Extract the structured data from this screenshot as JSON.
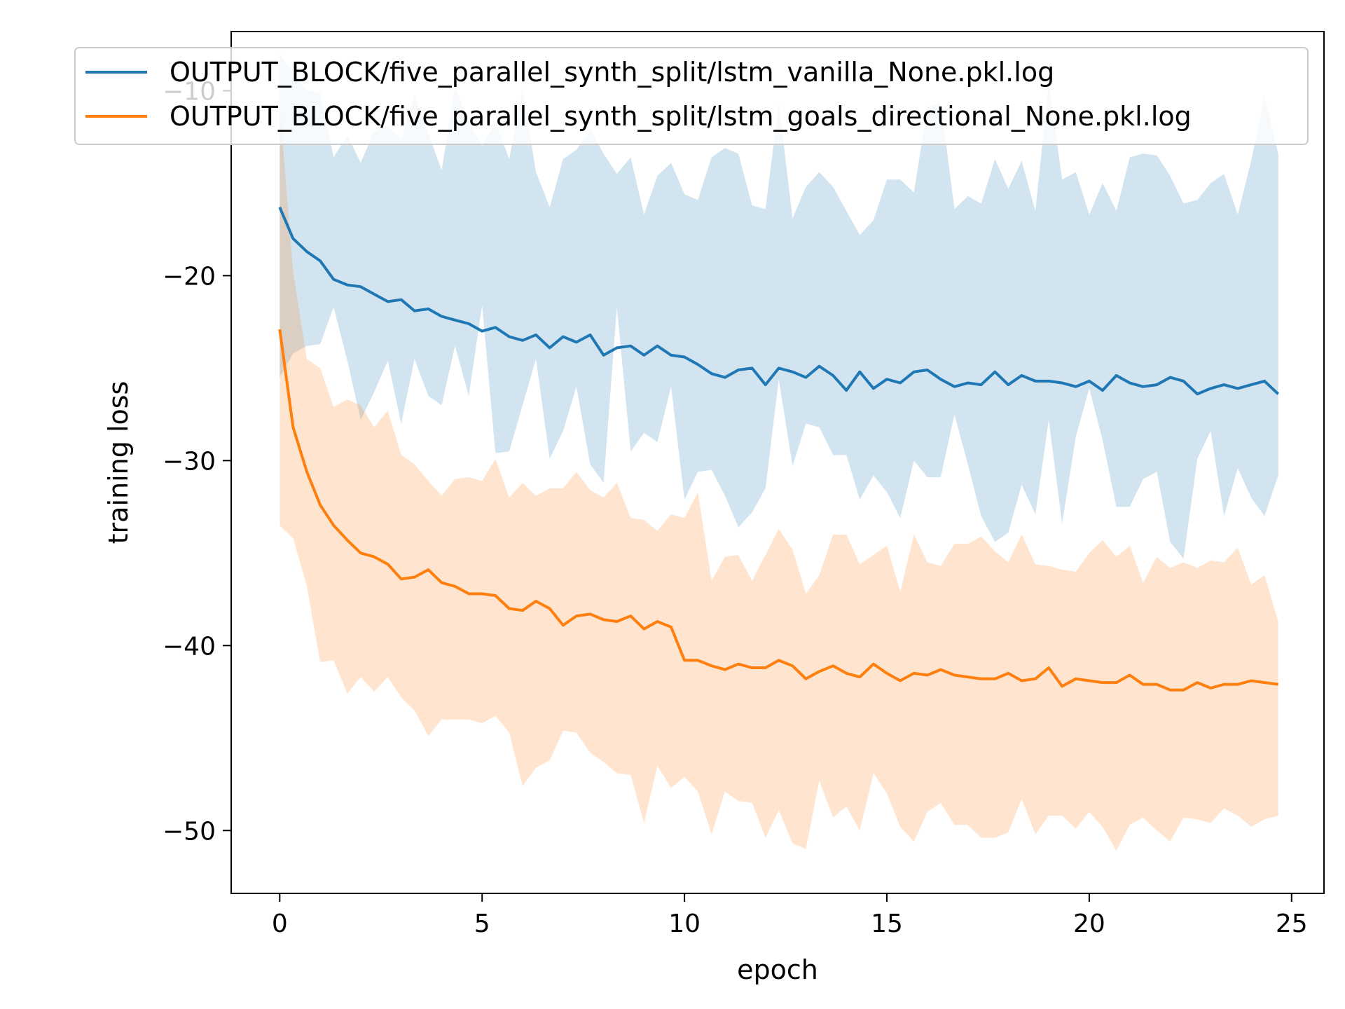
{
  "chart_data": {
    "type": "line",
    "xlabel": "epoch",
    "ylabel": "training loss",
    "xlim": [
      -1.2,
      25.8
    ],
    "ylim": [
      -53.4,
      -6.8
    ],
    "xticks": [
      0,
      5,
      10,
      15,
      20,
      25
    ],
    "yticks": [
      -50,
      -40,
      -30,
      -20,
      -10
    ],
    "legend_position": "top",
    "grid": false,
    "colors": {
      "series_1": "#1f77b4",
      "series_2": "#ff7f0e"
    },
    "series": [
      {
        "name": "OUTPUT_BLOCK/five_parallel_synth_split/lstm_vanilla_None.pkl.log",
        "x": [
          0,
          0.33,
          0.67,
          1,
          1.33,
          1.67,
          2,
          2.33,
          2.67,
          3,
          3.33,
          3.67,
          4,
          4.33,
          4.67,
          5,
          5.33,
          5.67,
          6,
          6.33,
          6.67,
          7,
          7.33,
          7.67,
          8,
          8.33,
          8.67,
          9,
          9.33,
          9.67,
          10,
          10.33,
          10.67,
          11,
          11.33,
          11.67,
          12,
          12.33,
          12.67,
          13,
          13.33,
          13.67,
          14,
          14.33,
          14.67,
          15,
          15.33,
          15.67,
          16,
          16.33,
          16.67,
          17,
          17.33,
          17.67,
          18,
          18.33,
          18.67,
          19,
          19.33,
          19.67,
          20,
          20.33,
          20.67,
          21,
          21.33,
          21.67,
          22,
          22.33,
          22.67,
          23,
          23.33,
          23.67,
          24,
          24.33,
          24.67
        ],
        "mean": [
          -16.3,
          -18.0,
          -18.7,
          -19.2,
          -20.2,
          -20.5,
          -20.6,
          -21.0,
          -21.4,
          -21.3,
          -21.9,
          -21.8,
          -22.2,
          -22.4,
          -22.6,
          -23.0,
          -22.8,
          -23.3,
          -23.5,
          -23.2,
          -23.9,
          -23.3,
          -23.6,
          -23.2,
          -24.3,
          -23.9,
          -23.8,
          -24.3,
          -23.8,
          -24.3,
          -24.4,
          -24.8,
          -25.3,
          -25.5,
          -25.1,
          -25.0,
          -25.9,
          -25.0,
          -25.2,
          -25.5,
          -24.9,
          -25.4,
          -26.2,
          -25.2,
          -26.1,
          -25.6,
          -25.8,
          -25.2,
          -25.1,
          -25.6,
          -26.0,
          -25.8,
          -25.9,
          -25.2,
          -25.9,
          -25.4,
          -25.7,
          -25.7,
          -25.8,
          -26.0,
          -25.7,
          -26.2,
          -25.4,
          -25.8,
          -26.0,
          -25.9,
          -25.5,
          -25.7,
          -26.4,
          -26.1,
          -25.9,
          -26.1,
          -25.9,
          -25.7,
          -26.4
        ],
        "upper": [
          -8.0,
          -9.0,
          -10.0,
          -10.1,
          -13.6,
          -12.4,
          -13.9,
          -12.2,
          -11.9,
          -12.6,
          -10.3,
          -12.3,
          -14.3,
          -9.8,
          -11.7,
          -13.0,
          -11.7,
          -13.7,
          -9.9,
          -14.4,
          -16.3,
          -13.7,
          -13.2,
          -12.1,
          -13.4,
          -14.5,
          -13.6,
          -16.7,
          -14.6,
          -13.9,
          -15.6,
          -15.9,
          -13.6,
          -13.1,
          -13.4,
          -16.2,
          -16.4,
          -10.7,
          -16.9,
          -15.2,
          -14.4,
          -15.2,
          -16.5,
          -17.8,
          -17.0,
          -14.8,
          -14.8,
          -15.5,
          -10.9,
          -10.6,
          -16.4,
          -15.7,
          -16.1,
          -13.7,
          -15.3,
          -13.8,
          -16.5,
          -9.6,
          -14.8,
          -14.4,
          -16.7,
          -15.0,
          -16.5,
          -13.6,
          -13.4,
          -13.5,
          -14.6,
          -16.1,
          -15.9,
          -15.0,
          -14.5,
          -16.7,
          -13.8,
          -10.3,
          -13.4
        ],
        "lower": [
          -25.5,
          -24.2,
          -23.8,
          -23.7,
          -21.7,
          -24.6,
          -27.8,
          -26.3,
          -24.6,
          -28.0,
          -24.5,
          -26.5,
          -27.0,
          -23.8,
          -26.5,
          -21.6,
          -29.6,
          -29.5,
          -27.0,
          -24.5,
          -29.9,
          -28.4,
          -26.0,
          -30.2,
          -31.2,
          -21.7,
          -29.5,
          -28.5,
          -29.0,
          -26.0,
          -32.1,
          -30.6,
          -30.5,
          -31.9,
          -33.6,
          -32.8,
          -31.5,
          -25.6,
          -30.3,
          -28.0,
          -28.2,
          -29.7,
          -29.7,
          -32.1,
          -30.8,
          -31.7,
          -33.1,
          -30.0,
          -30.9,
          -30.9,
          -27.5,
          -30.2,
          -33.0,
          -34.4,
          -33.9,
          -31.3,
          -32.9,
          -27.8,
          -33.4,
          -28.7,
          -26.1,
          -28.9,
          -32.5,
          -32.5,
          -31.0,
          -30.6,
          -34.4,
          -35.3,
          -29.9,
          -28.4,
          -33.0,
          -30.4,
          -32.0,
          -33.0,
          -30.8
        ]
      },
      {
        "name": "OUTPUT_BLOCK/five_parallel_synth_split/lstm_goals_directional_None.pkl.log",
        "x": [
          0,
          0.33,
          0.67,
          1,
          1.33,
          1.67,
          2,
          2.33,
          2.67,
          3,
          3.33,
          3.67,
          4,
          4.33,
          4.67,
          5,
          5.33,
          5.67,
          6,
          6.33,
          6.67,
          7,
          7.33,
          7.67,
          8,
          8.33,
          8.67,
          9,
          9.33,
          9.67,
          10,
          10.33,
          10.67,
          11,
          11.33,
          11.67,
          12,
          12.33,
          12.67,
          13,
          13.33,
          13.67,
          14,
          14.33,
          14.67,
          15,
          15.33,
          15.67,
          16,
          16.33,
          16.67,
          17,
          17.33,
          17.67,
          18,
          18.33,
          18.67,
          19,
          19.33,
          19.67,
          20,
          20.33,
          20.67,
          21,
          21.33,
          21.67,
          22,
          22.33,
          22.67,
          23,
          23.33,
          23.67,
          24,
          24.33,
          24.67
        ],
        "mean": [
          -22.9,
          -28.2,
          -30.6,
          -32.4,
          -33.5,
          -34.3,
          -35.0,
          -35.2,
          -35.6,
          -36.4,
          -36.3,
          -35.9,
          -36.6,
          -36.8,
          -37.2,
          -37.2,
          -37.3,
          -38.0,
          -38.1,
          -37.6,
          -38.0,
          -38.9,
          -38.4,
          -38.3,
          -38.6,
          -38.7,
          -38.4,
          -39.1,
          -38.7,
          -39.0,
          -40.8,
          -40.8,
          -41.1,
          -41.3,
          -41.0,
          -41.2,
          -41.2,
          -40.8,
          -41.1,
          -41.8,
          -41.4,
          -41.1,
          -41.5,
          -41.7,
          -41.0,
          -41.5,
          -41.9,
          -41.5,
          -41.6,
          -41.3,
          -41.6,
          -41.7,
          -41.8,
          -41.8,
          -41.5,
          -41.9,
          -41.8,
          -41.2,
          -42.2,
          -41.8,
          -41.9,
          -42.0,
          -42.0,
          -41.6,
          -42.1,
          -42.1,
          -42.4,
          -42.4,
          -42.0,
          -42.3,
          -42.1,
          -42.1,
          -41.9,
          -42.0,
          -42.1
        ],
        "upper": [
          -10.8,
          -19.8,
          -24.5,
          -25.0,
          -27.1,
          -26.7,
          -27.0,
          -28.2,
          -27.3,
          -29.7,
          -30.2,
          -31.1,
          -31.9,
          -31.0,
          -30.9,
          -31.1,
          -29.9,
          -32.0,
          -31.2,
          -31.9,
          -31.5,
          -31.5,
          -30.6,
          -31.6,
          -32.0,
          -31.2,
          -33.1,
          -33.2,
          -33.8,
          -32.9,
          -33.1,
          -31.7,
          -36.5,
          -35.2,
          -35.1,
          -36.5,
          -35.1,
          -33.7,
          -34.8,
          -37.2,
          -36.2,
          -34.0,
          -34.0,
          -35.6,
          -35.1,
          -34.6,
          -37.1,
          -34.0,
          -35.5,
          -35.7,
          -34.5,
          -34.5,
          -34.1,
          -34.9,
          -35.5,
          -34.0,
          -35.6,
          -35.7,
          -35.9,
          -36.0,
          -35.0,
          -34.3,
          -35.2,
          -34.6,
          -36.6,
          -35.2,
          -35.8,
          -35.5,
          -35.8,
          -35.4,
          -35.5,
          -34.7,
          -36.7,
          -36.2,
          -38.7
        ],
        "lower": [
          -33.5,
          -34.2,
          -36.8,
          -40.9,
          -40.8,
          -42.6,
          -41.7,
          -42.5,
          -41.7,
          -42.8,
          -43.5,
          -44.9,
          -44.0,
          -44.0,
          -44.0,
          -44.2,
          -43.8,
          -44.7,
          -47.6,
          -46.6,
          -46.2,
          -44.6,
          -44.7,
          -45.8,
          -46.3,
          -46.9,
          -47.0,
          -49.6,
          -46.5,
          -47.7,
          -47.1,
          -47.9,
          -50.2,
          -47.9,
          -48.4,
          -48.5,
          -50.4,
          -48.9,
          -50.7,
          -51.0,
          -47.3,
          -49.3,
          -48.7,
          -50.0,
          -46.9,
          -48.0,
          -49.8,
          -50.6,
          -49.0,
          -48.5,
          -49.7,
          -49.7,
          -50.4,
          -50.4,
          -50.1,
          -48.3,
          -50.2,
          -49.2,
          -49.2,
          -49.9,
          -49.0,
          -49.8,
          -51.1,
          -49.7,
          -49.3,
          -50.0,
          -50.6,
          -49.3,
          -49.4,
          -49.6,
          -48.8,
          -49.2,
          -49.8,
          -49.4,
          -49.2
        ]
      }
    ]
  }
}
